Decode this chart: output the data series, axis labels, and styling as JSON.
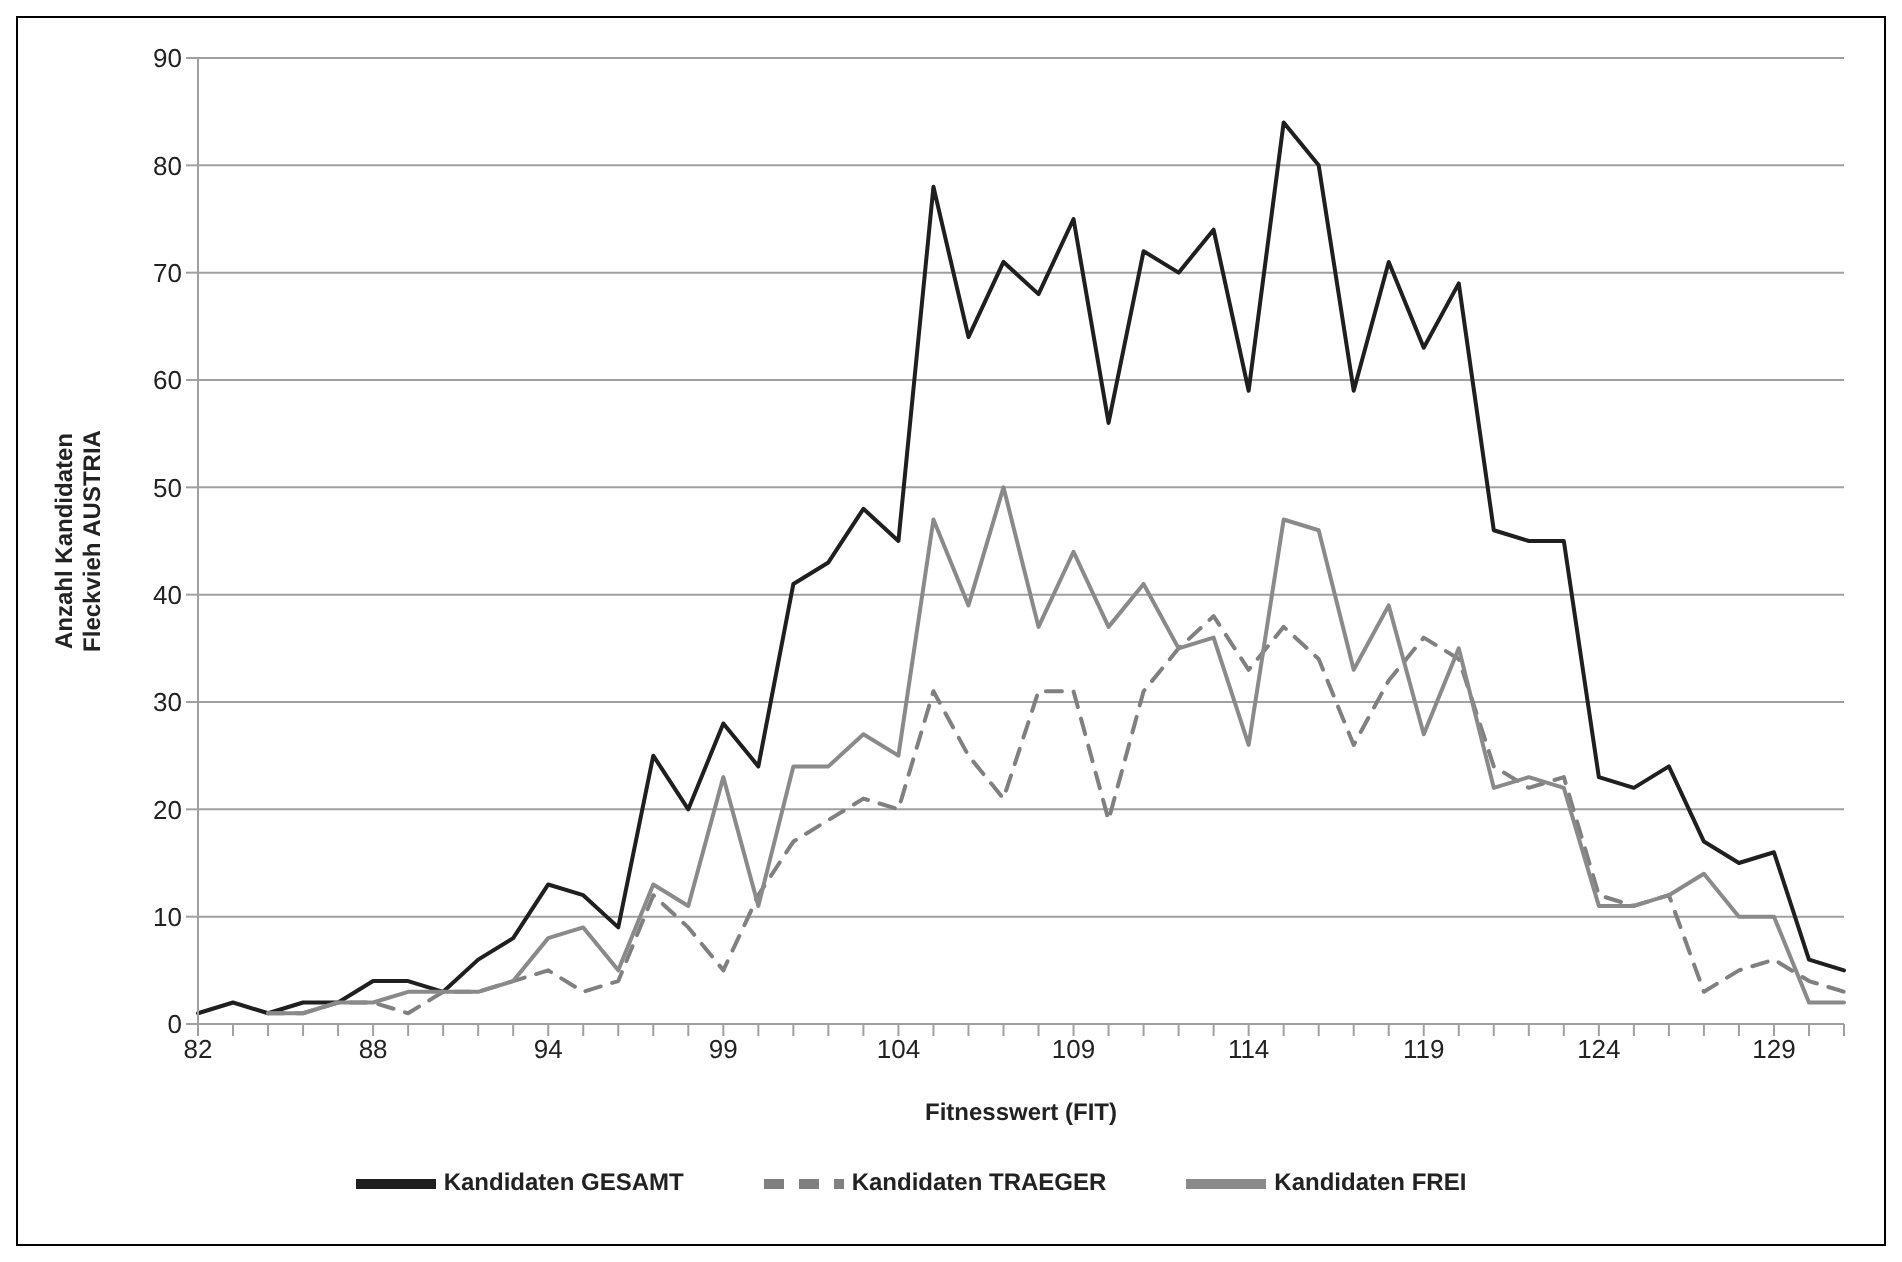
{
  "chart_data": {
    "type": "line",
    "xlabel": "Fitnesswert (FIT)",
    "ylabel": "Anzahl Kandidaten\nFleckvieh AUSTRIA",
    "categories": [
      "82",
      null,
      null,
      null,
      null,
      "88",
      null,
      null,
      null,
      null,
      "94",
      null,
      null,
      null,
      null,
      "99",
      null,
      null,
      null,
      null,
      "104",
      null,
      null,
      null,
      null,
      "109",
      null,
      null,
      null,
      null,
      "114",
      null,
      null,
      null,
      null,
      "119",
      null,
      null,
      null,
      null,
      "124",
      null,
      null,
      null,
      null,
      "129",
      null,
      null
    ],
    "series": [
      {
        "name": "Kandidaten GESAMT",
        "color": "#1f1f1f",
        "line_style": "solid",
        "values": [
          1,
          2,
          1,
          2,
          2,
          4,
          4,
          3,
          6,
          8,
          13,
          12,
          9,
          25,
          20,
          28,
          24,
          41,
          43,
          48,
          45,
          78,
          64,
          71,
          68,
          75,
          56,
          72,
          70,
          74,
          59,
          84,
          80,
          59,
          71,
          63,
          69,
          46,
          45,
          45,
          23,
          22,
          24,
          17,
          15,
          16,
          6,
          5
        ]
      },
      {
        "name": "Kandidaten TRAEGER",
        "color": "#808080",
        "line_style": "dashed",
        "values": [
          null,
          null,
          1,
          1,
          2,
          2,
          1,
          3,
          3,
          4,
          5,
          3,
          4,
          12,
          9,
          5,
          12,
          17,
          19,
          21,
          20,
          31,
          25,
          21,
          31,
          31,
          19,
          31,
          35,
          38,
          33,
          37,
          34,
          26,
          32,
          36,
          34,
          24,
          22,
          23,
          12,
          11,
          12,
          3,
          5,
          6,
          4,
          3
        ]
      },
      {
        "name": "Kandidaten FREI",
        "color": "#8a8a8a",
        "line_style": "solid",
        "values": [
          null,
          null,
          1,
          1,
          2,
          2,
          3,
          3,
          3,
          4,
          8,
          9,
          5,
          13,
          11,
          23,
          11,
          24,
          24,
          27,
          25,
          47,
          39,
          50,
          37,
          44,
          37,
          41,
          35,
          36,
          26,
          47,
          46,
          33,
          39,
          27,
          35,
          22,
          23,
          22,
          11,
          11,
          12,
          14,
          10,
          10,
          2,
          2
        ]
      }
    ],
    "ylim": [
      0,
      90
    ],
    "yticks": [
      0,
      10,
      20,
      30,
      40,
      50,
      60,
      70,
      80,
      90
    ],
    "grid": "y",
    "legend": "bottom",
    "marker": "none"
  }
}
